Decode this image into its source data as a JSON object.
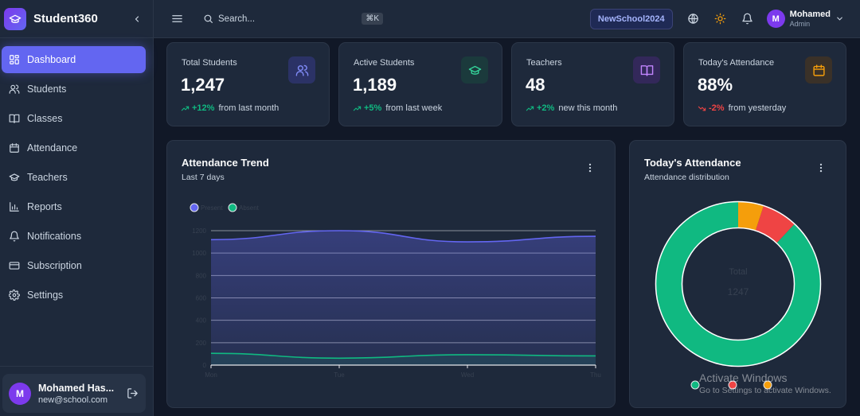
{
  "brand": {
    "name": "Student360"
  },
  "nav": [
    {
      "label": "Dashboard",
      "icon": "grid-icon",
      "active": true
    },
    {
      "label": "Students",
      "icon": "users-icon"
    },
    {
      "label": "Classes",
      "icon": "book-icon"
    },
    {
      "label": "Attendance",
      "icon": "calendar-icon"
    },
    {
      "label": "Teachers",
      "icon": "graduation-cap-icon"
    },
    {
      "label": "Reports",
      "icon": "bar-chart-icon"
    },
    {
      "label": "Notifications",
      "icon": "bell-icon"
    },
    {
      "label": "Subscription",
      "icon": "credit-card-icon"
    },
    {
      "label": "Settings",
      "icon": "gear-icon"
    }
  ],
  "sidebar_user": {
    "initial": "M",
    "name": "Mohamed Has...",
    "email": "new@school.com"
  },
  "header": {
    "search_placeholder": "Search...",
    "shortcut": "⌘K",
    "school": "NewSchool2024",
    "user": {
      "initial": "M",
      "name": "Mohamed",
      "role": "Admin"
    }
  },
  "stats": [
    {
      "title": "Total Students",
      "value": "1,247",
      "change": "+12%",
      "period": "from last month",
      "direction": "up",
      "icon": "users-icon",
      "color": "#818cf8",
      "bg": "#2b3266"
    },
    {
      "title": "Active Students",
      "value": "1,189",
      "change": "+5%",
      "period": "from last week",
      "direction": "up",
      "icon": "graduation-cap-icon",
      "color": "#34d399",
      "bg": "#1b3a3c"
    },
    {
      "title": "Teachers",
      "value": "48",
      "change": "+2%",
      "period": "new this month",
      "direction": "up",
      "icon": "book-open-icon",
      "color": "#c084fc",
      "bg": "#33285a"
    },
    {
      "title": "Today's Attendance",
      "value": "88%",
      "change": "-2%",
      "period": "from yesterday",
      "direction": "down",
      "icon": "calendar-icon",
      "color": "#f59e0b",
      "bg": "#3a3128"
    }
  ],
  "colors": {
    "up": "#10b981",
    "down": "#ef4444",
    "accent": "#6366f1"
  },
  "trend_panel": {
    "title": "Attendance Trend",
    "subtitle": "Last 7 days"
  },
  "dist_panel": {
    "title": "Today's Attendance",
    "subtitle": "Attendance distribution"
  },
  "chart_data": [
    {
      "type": "area",
      "title": "Attendance Trend",
      "subtitle": "Last 7 days",
      "categories": [
        "Mon",
        "Tue",
        "Wed",
        "Thu"
      ],
      "series": [
        {
          "name": "Present",
          "values": [
            1120,
            1200,
            1100,
            1150
          ],
          "color": "#6366f1"
        },
        {
          "name": "Absent",
          "values": [
            105,
            62,
            93,
            82
          ],
          "color": "#10b981"
        }
      ],
      "yticks": [
        0,
        200,
        400,
        600,
        800,
        1000,
        1200
      ],
      "ylim": [
        0,
        1200
      ],
      "legend": "top-left",
      "grid": true
    },
    {
      "type": "pie",
      "title": "Today's Attendance",
      "subtitle": "Attendance distribution",
      "center_label": "Total",
      "center_value": "1247",
      "slices": [
        {
          "value": 88,
          "color": "#10b981"
        },
        {
          "value": 7,
          "color": "#ef4444"
        },
        {
          "value": 5,
          "color": "#f59e0b"
        }
      ],
      "legend": "bottom"
    }
  ],
  "watermark": {
    "line1": "Activate Windows",
    "line2": "Go to Settings to activate Windows."
  }
}
